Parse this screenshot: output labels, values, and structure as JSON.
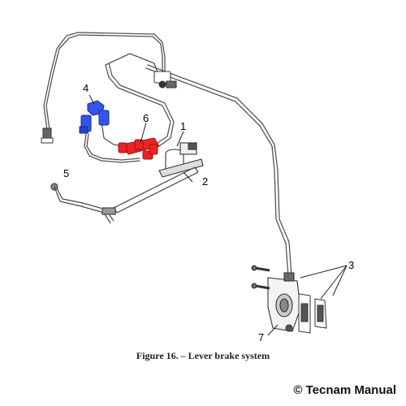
{
  "caption": "Figure 16. – Lever brake system",
  "copyright": "© Tecnam Manual",
  "callouts": [
    {
      "id": "1",
      "label": "1"
    },
    {
      "id": "2",
      "label": "2"
    },
    {
      "id": "3",
      "label": "3"
    },
    {
      "id": "4",
      "label": "4"
    },
    {
      "id": "5",
      "label": "5"
    },
    {
      "id": "6",
      "label": "6"
    },
    {
      "id": "7",
      "label": "7"
    }
  ],
  "colors": {
    "line": "#555555",
    "part4": "#3355ee",
    "part6": "#ee2222"
  }
}
